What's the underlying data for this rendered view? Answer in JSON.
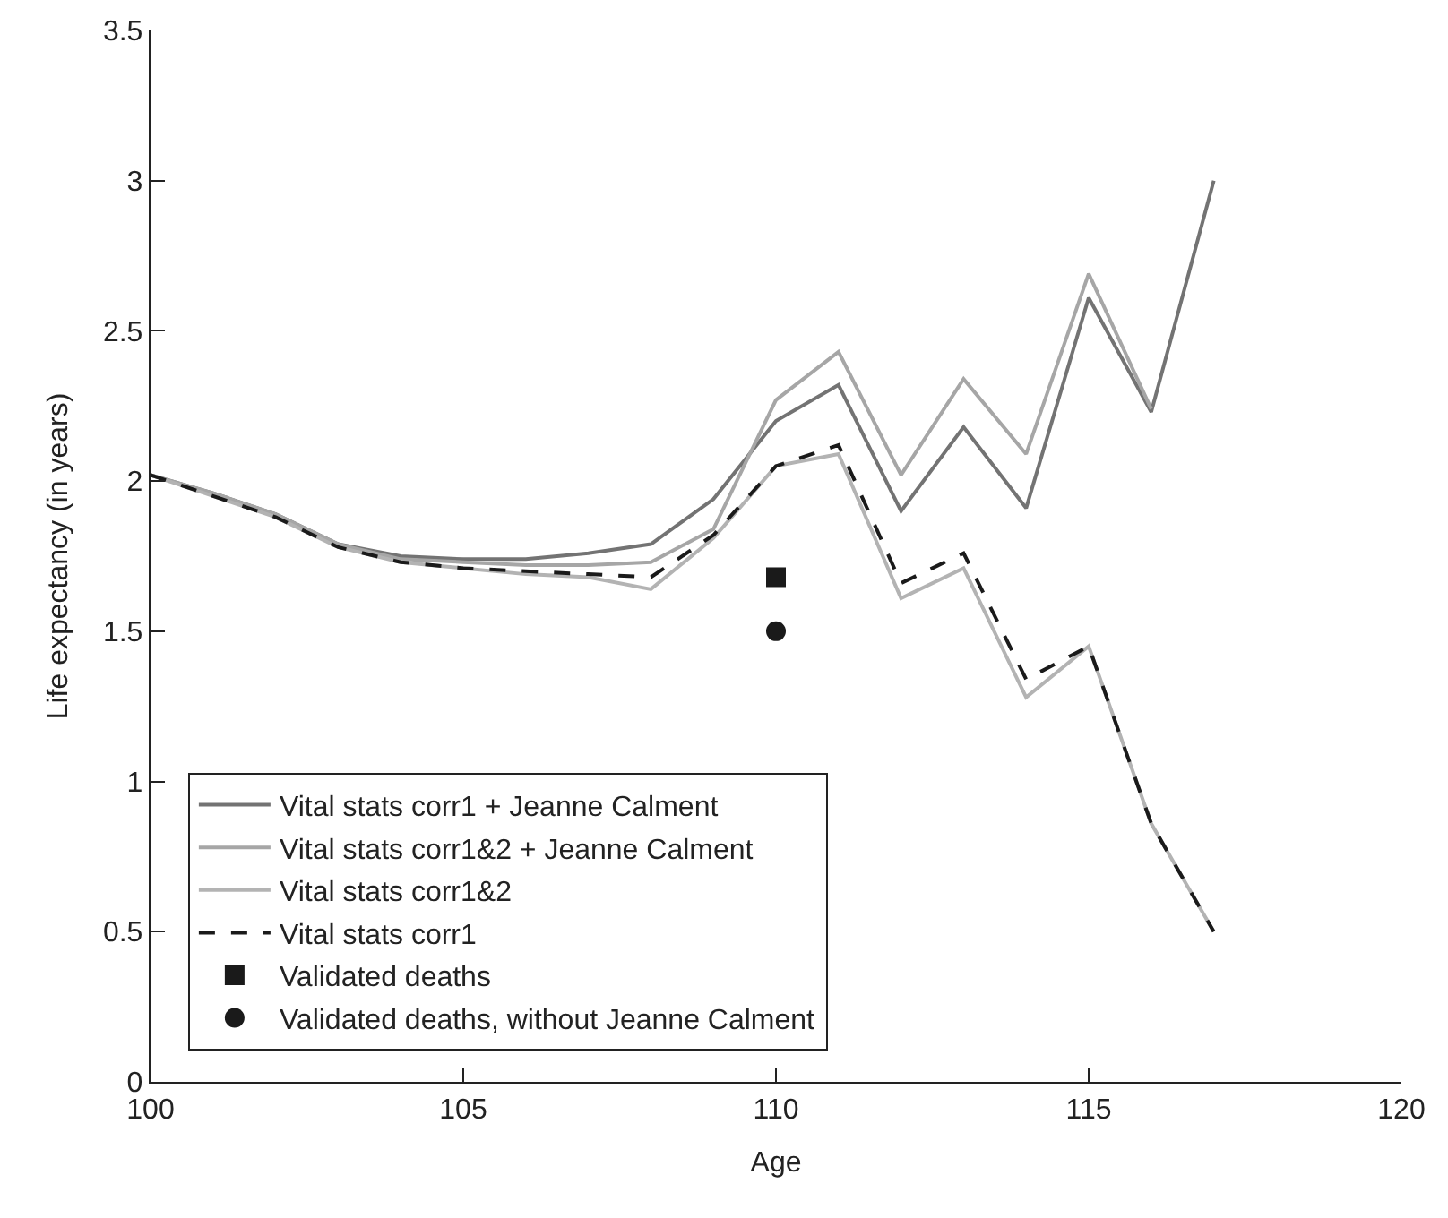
{
  "chart_data": {
    "type": "line",
    "xlabel": "Age",
    "ylabel": "Life expectancy (in years)",
    "x": [
      100,
      101,
      102,
      103,
      104,
      105,
      106,
      107,
      108,
      109,
      110,
      111,
      112,
      113,
      114,
      115,
      116,
      117
    ],
    "xlim": [
      100,
      120
    ],
    "xticks": [
      100,
      105,
      110,
      115,
      120
    ],
    "ylim": [
      0,
      3.5
    ],
    "yticks": [
      0,
      0.5,
      1,
      1.5,
      2,
      2.5,
      3,
      3.5
    ],
    "legend": "bottom left",
    "marker": "none",
    "series": [
      {
        "name": "Vital stats corr1 + Jeanne Calment",
        "color": "#737373",
        "line_style": "solid",
        "values": [
          2.02,
          1.96,
          1.89,
          1.79,
          1.75,
          1.74,
          1.74,
          1.76,
          1.79,
          1.94,
          2.2,
          2.32,
          1.9,
          2.18,
          1.91,
          2.61,
          2.23,
          3.0
        ]
      },
      {
        "name": "Vital stats corr1&2 + Jeanne Calment",
        "color": "#a6a6a6",
        "line_style": "solid",
        "values": [
          2.02,
          1.96,
          1.89,
          1.79,
          1.74,
          1.73,
          1.72,
          1.72,
          1.73,
          1.84,
          2.27,
          2.43,
          2.02,
          2.34,
          2.09,
          2.69,
          2.24,
          null
        ]
      },
      {
        "name": "Vital stats corr1&2",
        "color": "#b3b3b3",
        "line_style": "solid",
        "values": [
          2.02,
          1.95,
          1.88,
          1.78,
          1.73,
          1.71,
          1.69,
          1.68,
          1.64,
          1.81,
          2.05,
          2.09,
          1.61,
          1.71,
          1.28,
          1.45,
          0.86,
          0.5
        ]
      },
      {
        "name": "Vital stats corr1",
        "color": "#1a1a1a",
        "line_style": "dashed",
        "values": [
          2.02,
          1.95,
          1.88,
          1.78,
          1.73,
          1.71,
          1.7,
          1.69,
          1.68,
          1.82,
          2.05,
          2.12,
          1.66,
          1.76,
          1.34,
          1.45,
          0.86,
          0.5
        ]
      },
      {
        "name": "Validated deaths",
        "type": "scatter",
        "marker": "square",
        "color": "#1a1a1a",
        "x": [
          110
        ],
        "values": [
          1.68
        ]
      },
      {
        "name": "Validated deaths, without Jeanne Calment",
        "type": "scatter",
        "marker": "circle",
        "color": "#1a1a1a",
        "x": [
          110
        ],
        "values": [
          1.5
        ]
      }
    ]
  }
}
